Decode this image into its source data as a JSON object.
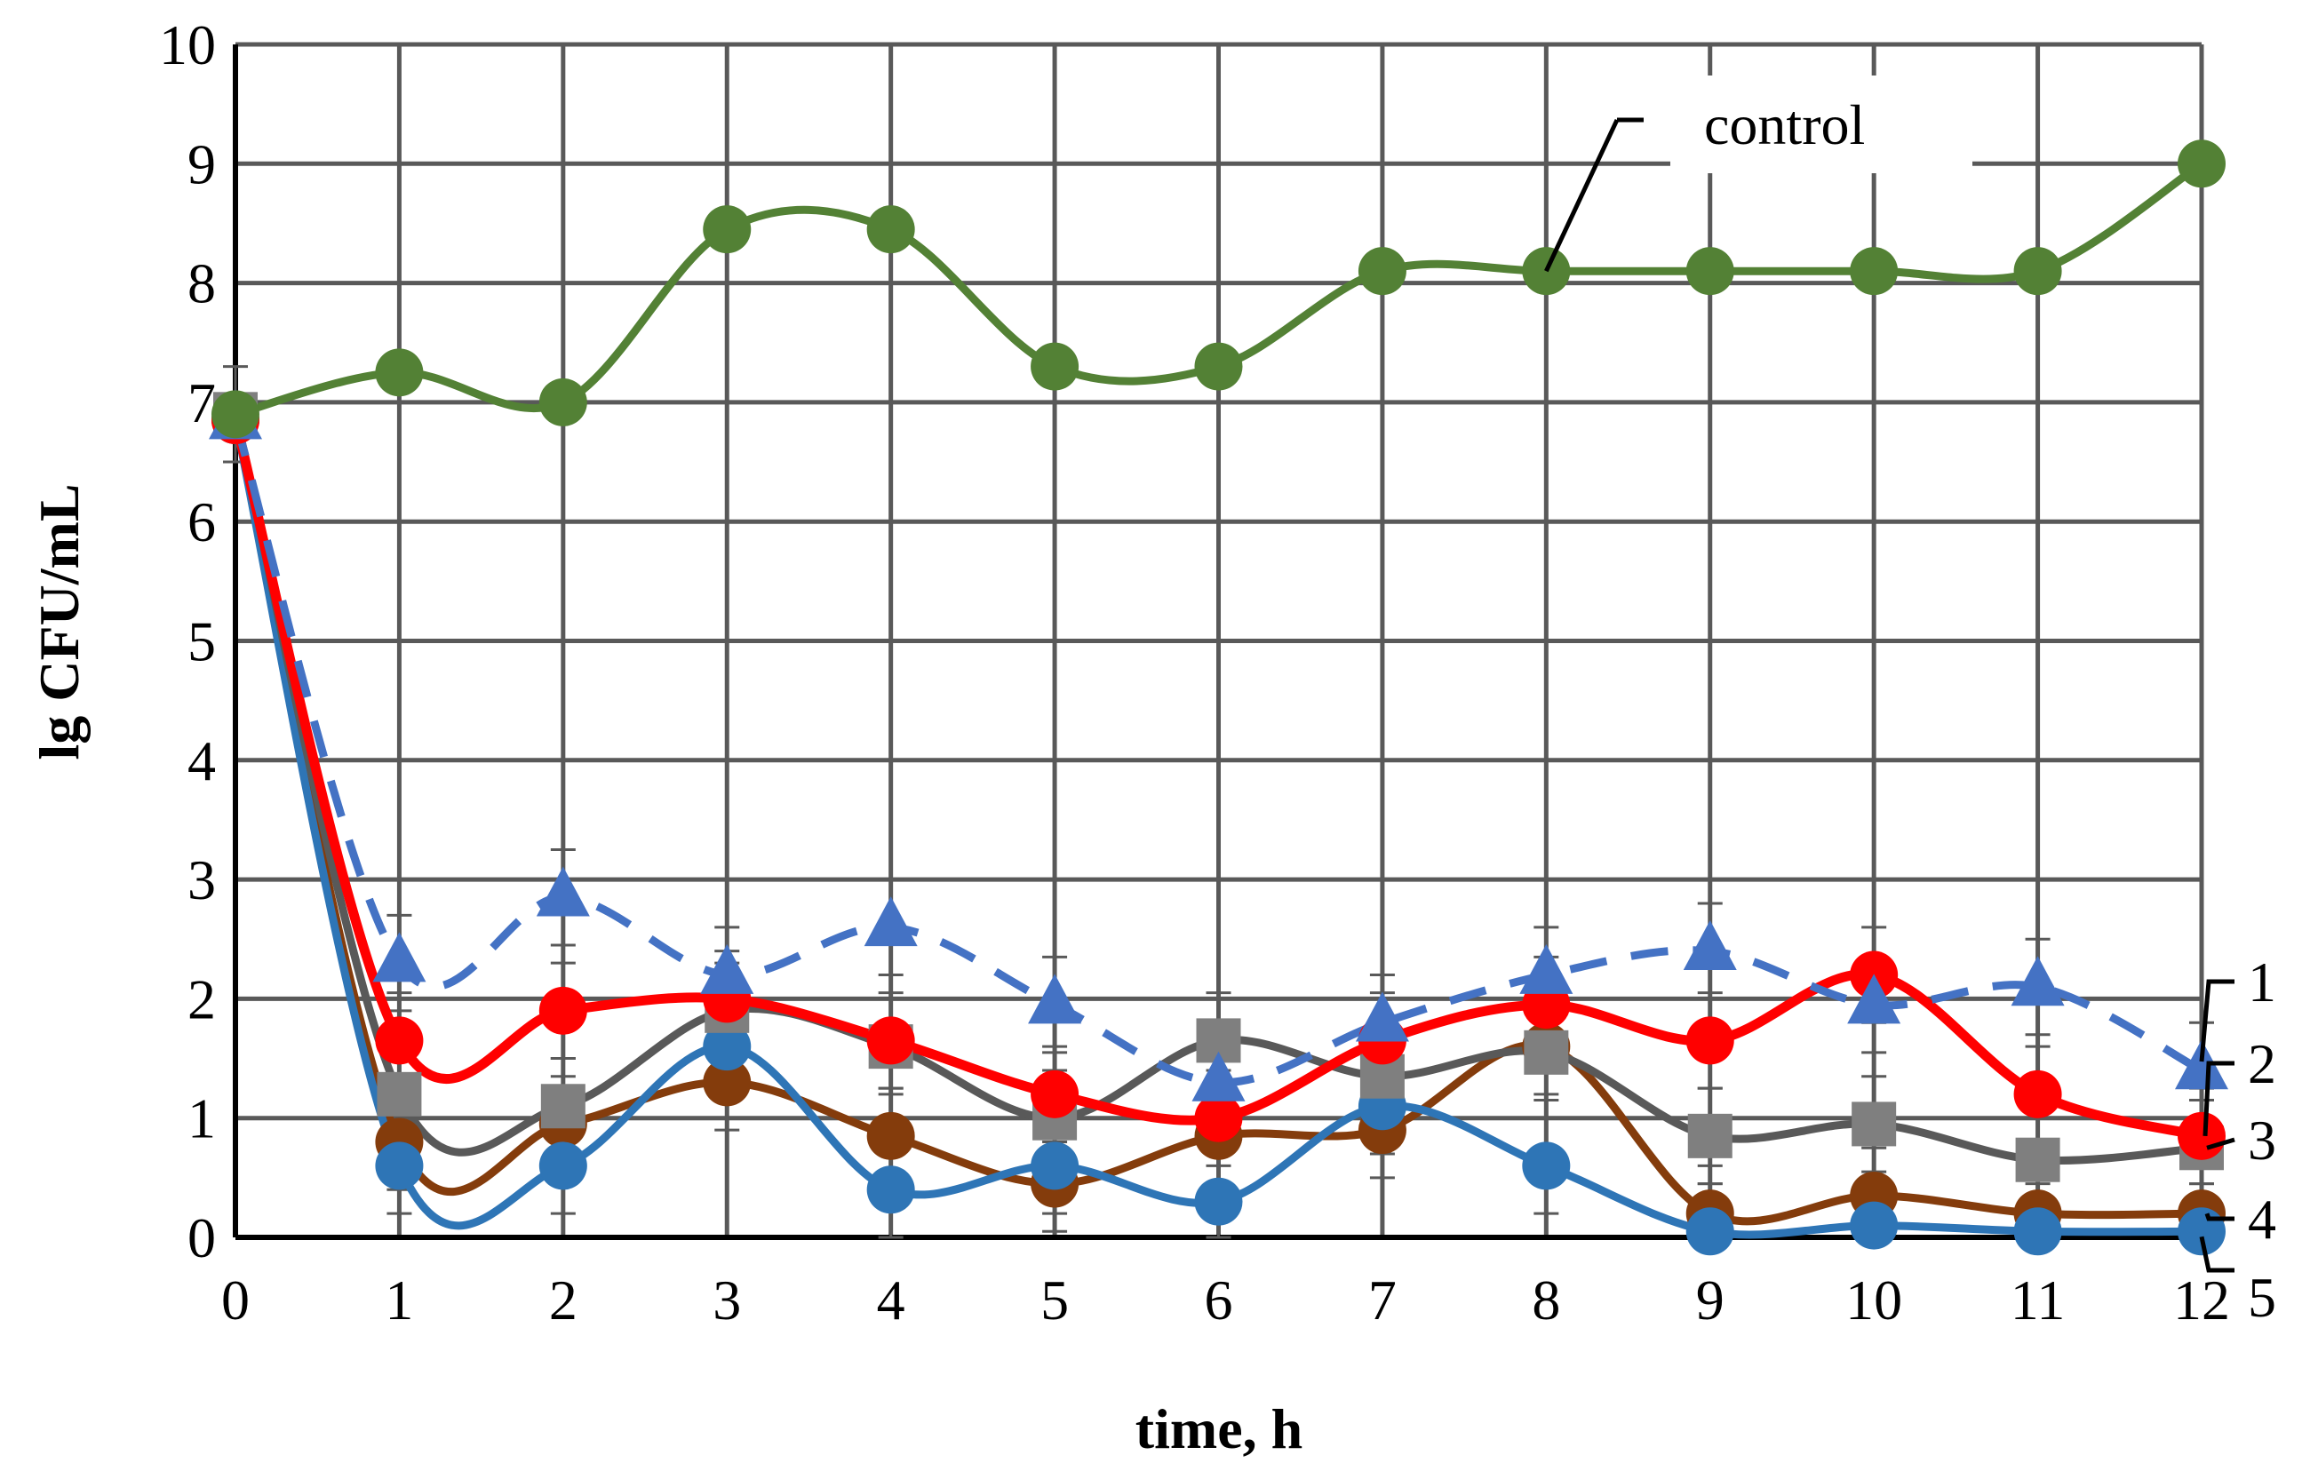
{
  "chart_data": {
    "type": "line",
    "title": "",
    "xlabel": "time, h",
    "ylabel": "lg CFU/mL",
    "xlim": [
      0,
      12
    ],
    "ylim": [
      0,
      10
    ],
    "x": [
      0,
      1,
      2,
      3,
      4,
      5,
      6,
      7,
      8,
      9,
      10,
      11,
      12
    ],
    "x_ticks": [
      "0",
      "1",
      "2",
      "3",
      "4",
      "5",
      "6",
      "7",
      "8",
      "9",
      "10",
      "11",
      "12"
    ],
    "y_ticks": [
      "0",
      "1",
      "2",
      "3",
      "4",
      "5",
      "6",
      "7",
      "8",
      "9",
      "10"
    ],
    "grid": true,
    "series": [
      {
        "name": "control",
        "label": "control",
        "color": "#538135",
        "marker": "circle",
        "dash": false,
        "values": [
          6.9,
          7.25,
          7.0,
          8.45,
          8.45,
          7.3,
          7.3,
          8.1,
          8.1,
          8.1,
          8.1,
          8.1,
          9.0
        ],
        "errors": [
          0,
          0,
          0,
          0,
          0,
          0,
          0,
          0,
          0,
          0,
          0,
          0,
          0
        ]
      },
      {
        "name": "1",
        "label": "1",
        "color": "#4472C4",
        "marker": "triangle",
        "dash": true,
        "values": [
          6.85,
          2.3,
          2.85,
          2.2,
          2.6,
          1.95,
          1.3,
          1.8,
          2.2,
          2.4,
          1.95,
          2.1,
          1.4
        ],
        "errors": [
          0,
          0.4,
          0.4,
          0.4,
          0.4,
          0.4,
          0.4,
          0.4,
          0.4,
          0.4,
          0.4,
          0.4,
          0.4
        ]
      },
      {
        "name": "2",
        "label": "2",
        "color": "#FF0000",
        "marker": "circle",
        "dash": false,
        "values": [
          6.85,
          1.65,
          1.9,
          2.0,
          1.65,
          1.2,
          1.0,
          1.65,
          1.95,
          1.65,
          2.2,
          1.2,
          0.85
        ],
        "errors": [
          0,
          0.4,
          0.4,
          0.4,
          0.4,
          0.4,
          0.4,
          0.4,
          0.4,
          0.4,
          0.4,
          0.4,
          0.4
        ]
      },
      {
        "name": "3",
        "label": "3",
        "color": "#595959",
        "marker": "square",
        "dash": false,
        "values": [
          6.9,
          1.2,
          1.1,
          1.9,
          1.6,
          1.0,
          1.65,
          1.35,
          1.55,
          0.85,
          0.95,
          0.65,
          0.75
        ],
        "errors": [
          0.4,
          0.4,
          0.4,
          0.4,
          0.4,
          0.4,
          0.4,
          0.4,
          0.4,
          0.4,
          0.4,
          0.4,
          0.4
        ]
      },
      {
        "name": "4",
        "label": "4",
        "color": "#843C0C",
        "marker": "circle",
        "dash": false,
        "values": [
          6.85,
          0.8,
          0.95,
          1.3,
          0.85,
          0.45,
          0.85,
          0.9,
          1.6,
          0.2,
          0.35,
          0.2,
          0.2
        ],
        "errors": [
          0,
          0.4,
          0.4,
          0.4,
          0.4,
          0.4,
          0.4,
          0.4,
          0.4,
          0.4,
          0.4,
          0.4,
          0.4
        ]
      },
      {
        "name": "5",
        "label": "5",
        "color": "#2E75B6",
        "marker": "circle",
        "dash": false,
        "values": [
          6.85,
          0.6,
          0.6,
          1.6,
          0.4,
          0.6,
          0.3,
          1.1,
          0.6,
          0.05,
          0.1,
          0.05,
          0.05
        ],
        "errors": [
          0,
          0.4,
          0.4,
          0.4,
          0.4,
          0.4,
          0.4,
          0.4,
          0.4,
          0.4,
          0.4,
          0.4,
          0.4
        ]
      }
    ]
  }
}
